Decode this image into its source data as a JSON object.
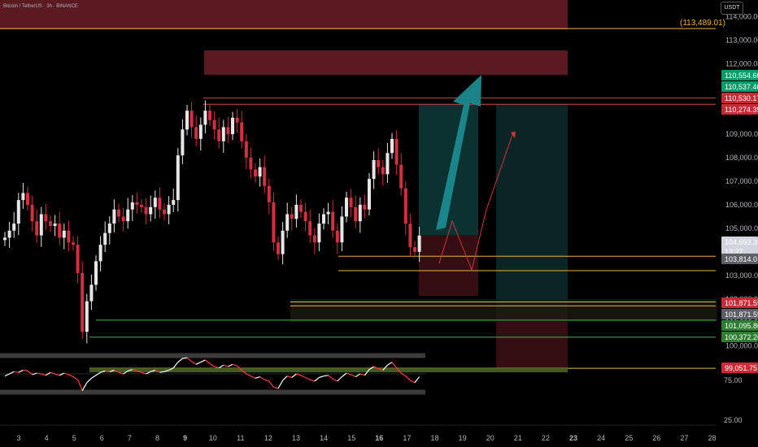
{
  "header": {
    "symbol_line": "Bitcoin / TetherUS · 3h · BINANCE",
    "currency": "USDT"
  },
  "colors": {
    "bg": "#000000",
    "up": "#e6e6e6",
    "down": "#d32f40",
    "supply_zone": "#5a1a1f",
    "yellow_level": "#e6b341",
    "green_level": "#4caf50",
    "teal": "#1b8a8f",
    "rsi_line_up": "#ffffff",
    "rsi_line_down": "#ff3b3b"
  },
  "chart_data": {
    "type": "candlestick",
    "y_axis": {
      "ticks": [
        "114,000.00",
        "113,000.00",
        "112,000.00",
        "111,000.00",
        "110,000.00",
        "109,000.00",
        "108,000.00",
        "107,000.00",
        "106,000.00",
        "105,000.00",
        "104,000.00",
        "103,000.00",
        "102,000.00",
        "101,000.00",
        "100,000.00"
      ],
      "range": [
        99051.75,
        114500
      ]
    },
    "x_axis": {
      "ticks": [
        "3",
        "4",
        "5",
        "6",
        "7",
        "8",
        "9",
        "10",
        "11",
        "12",
        "13",
        "14",
        "15",
        "16",
        "17",
        "18",
        "19",
        "20",
        "21",
        "22",
        "23",
        "24",
        "25",
        "26",
        "27",
        "28"
      ],
      "bold": [
        "9",
        "16",
        "23"
      ]
    },
    "price_tags": [
      {
        "label": "110,554.66",
        "kind": "green"
      },
      {
        "label": "110,537.46",
        "kind": "green"
      },
      {
        "label": "110,530.17",
        "kind": "red"
      },
      {
        "label": "110,274.39",
        "kind": "red"
      },
      {
        "label": "104,693.37",
        "sub": "13:27",
        "kind": "light"
      },
      {
        "label": "103,814.01",
        "kind": "gray"
      },
      {
        "label": "101,871.59",
        "kind": "red"
      },
      {
        "label": "101,871.59",
        "kind": "gray"
      },
      {
        "label": "101,095.80",
        "kind": "darkgreen"
      },
      {
        "label": "100,372.26",
        "kind": "darkgreen"
      },
      {
        "label": "99,051.75",
        "kind": "red"
      }
    ],
    "annotation": "(113,489.01)",
    "horizontal_levels": [
      113489.01,
      103814,
      103200,
      102000,
      101095.8,
      100372.26,
      99051.75
    ],
    "close_series": [
      104600,
      104900,
      105200,
      106200,
      106500,
      106000,
      105300,
      104700,
      105600,
      105300,
      105100,
      105200,
      104600,
      104900,
      104400,
      104300,
      103100,
      100600,
      101900,
      102600,
      103600,
      104300,
      104800,
      105200,
      105800,
      105500,
      105300,
      105800,
      106100,
      106000,
      105900,
      105600,
      105900,
      106300,
      105800,
      105600,
      106000,
      106200,
      108100,
      109200,
      110000,
      109300,
      108800,
      109400,
      110000,
      109600,
      109200,
      108700,
      109300,
      109000,
      109700,
      109500,
      108700,
      108000,
      107500,
      107200,
      107600,
      106800,
      106100,
      104400,
      103900,
      104900,
      105600,
      105400,
      106000,
      105700,
      105300,
      104700,
      104400,
      105200,
      105600,
      105700,
      104900,
      104400,
      105500,
      106300,
      105900,
      105300,
      106000,
      105800,
      107100,
      107900,
      107600,
      107300,
      108200,
      108800,
      107700,
      106700,
      105200,
      104200,
      104000,
      104693.37
    ],
    "rsi": {
      "levels": [
        "75.00",
        "25.00"
      ],
      "values": [
        47,
        50,
        53,
        52,
        55,
        54,
        49,
        51,
        50,
        48,
        52,
        50,
        48,
        51,
        49,
        46,
        42,
        27,
        38,
        44,
        48,
        52,
        54,
        53,
        55,
        52,
        50,
        54,
        56,
        54,
        52,
        50,
        53,
        55,
        52,
        53,
        55,
        58,
        66,
        71,
        72,
        67,
        63,
        66,
        69,
        64,
        60,
        58,
        62,
        60,
        63,
        61,
        55,
        50,
        47,
        44,
        46,
        42,
        40,
        32,
        30,
        41,
        47,
        45,
        50,
        48,
        45,
        42,
        40,
        45,
        47,
        48,
        43,
        40,
        46,
        51,
        49,
        46,
        50,
        48,
        56,
        60,
        57,
        55,
        62,
        66,
        58,
        51,
        47,
        41,
        38,
        46
      ]
    }
  }
}
